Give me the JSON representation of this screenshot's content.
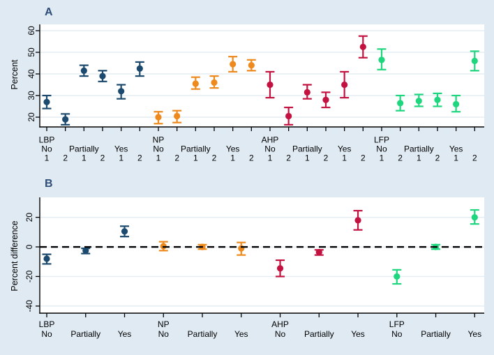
{
  "colors": {
    "background": "#dfeaf3",
    "plot_background": "#ffffff",
    "gridline": "#e3edf3",
    "axis": "#000000",
    "panel_letter": "#2e4d77",
    "zero_line": "#000000",
    "group_lbp": "#1b4a6e",
    "group_np": "#ee8a1d",
    "group_ahp": "#c41240",
    "group_lfp": "#1dd67d"
  },
  "chart_data": [
    {
      "type": "pointrange",
      "title": "A",
      "ylabel": "Percent",
      "yticks": [
        20,
        30,
        40,
        50,
        60
      ],
      "ylim": [
        15.5,
        62.9
      ],
      "grid": true,
      "legend": "none",
      "groups": [
        {
          "name": "LBP",
          "color": "#1b4a6e",
          "categories": [
            {
              "label": "No",
              "points": [
                {
                  "t": "1",
                  "value": 27,
                  "lo": 24,
                  "hi": 30
                },
                {
                  "t": "2",
                  "value": 19,
                  "lo": 16.5,
                  "hi": 21.5
                }
              ]
            },
            {
              "label": "Partially",
              "points": [
                {
                  "t": "1",
                  "value": 41.5,
                  "lo": 39,
                  "hi": 44
                },
                {
                  "t": "2",
                  "value": 39,
                  "lo": 36.5,
                  "hi": 41.5
                }
              ]
            },
            {
              "label": "Yes",
              "points": [
                {
                  "t": "1",
                  "value": 32,
                  "lo": 28.5,
                  "hi": 35
                },
                {
                  "t": "2",
                  "value": 42.5,
                  "lo": 39,
                  "hi": 45.5
                }
              ]
            }
          ]
        },
        {
          "name": "NP",
          "color": "#ee8a1d",
          "categories": [
            {
              "label": "No",
              "points": [
                {
                  "t": "1",
                  "value": 20,
                  "lo": 17,
                  "hi": 22.5
                },
                {
                  "t": "2",
                  "value": 20.5,
                  "lo": 17.5,
                  "hi": 23
                }
              ]
            },
            {
              "label": "Partially",
              "points": [
                {
                  "t": "1",
                  "value": 35.5,
                  "lo": 33,
                  "hi": 38.5
                },
                {
                  "t": "2",
                  "value": 36,
                  "lo": 33.5,
                  "hi": 39
                }
              ]
            },
            {
              "label": "Yes",
              "points": [
                {
                  "t": "1",
                  "value": 44.5,
                  "lo": 41,
                  "hi": 48
                },
                {
                  "t": "2",
                  "value": 44,
                  "lo": 41.5,
                  "hi": 46.5
                }
              ]
            }
          ]
        },
        {
          "name": "AHP",
          "color": "#c41240",
          "categories": [
            {
              "label": "No",
              "points": [
                {
                  "t": "1",
                  "value": 35,
                  "lo": 29,
                  "hi": 41
                },
                {
                  "t": "2",
                  "value": 20.5,
                  "lo": 16.5,
                  "hi": 24.5
                }
              ]
            },
            {
              "label": "Partially",
              "points": [
                {
                  "t": "1",
                  "value": 31.5,
                  "lo": 28.5,
                  "hi": 35
                },
                {
                  "t": "2",
                  "value": 28,
                  "lo": 24.5,
                  "hi": 31.5
                }
              ]
            },
            {
              "label": "Yes",
              "points": [
                {
                  "t": "1",
                  "value": 35,
                  "lo": 29,
                  "hi": 41
                },
                {
                  "t": "2",
                  "value": 52.5,
                  "lo": 47.5,
                  "hi": 57.5
                }
              ]
            }
          ]
        },
        {
          "name": "LFP",
          "color": "#1dd67d",
          "categories": [
            {
              "label": "No",
              "points": [
                {
                  "t": "1",
                  "value": 46.5,
                  "lo": 42,
                  "hi": 51.5
                },
                {
                  "t": "2",
                  "value": 26.5,
                  "lo": 23,
                  "hi": 30
                }
              ]
            },
            {
              "label": "Partially",
              "points": [
                {
                  "t": "1",
                  "value": 27.5,
                  "lo": 25,
                  "hi": 30.5
                },
                {
                  "t": "2",
                  "value": 28,
                  "lo": 25,
                  "hi": 31
                }
              ]
            },
            {
              "label": "Yes",
              "points": [
                {
                  "t": "1",
                  "value": 26,
                  "lo": 22.5,
                  "hi": 30
                },
                {
                  "t": "2",
                  "value": 46,
                  "lo": 41.5,
                  "hi": 50.5
                }
              ]
            }
          ]
        }
      ]
    },
    {
      "type": "pointrange",
      "title": "B",
      "ylabel": "Percent difference",
      "yticks": [
        -40,
        -20,
        0,
        20
      ],
      "ylim": [
        -44.9,
        33.5
      ],
      "grid": true,
      "zero_line": "dashed",
      "legend": "none",
      "groups": [
        {
          "name": "LBP",
          "color": "#1b4a6e",
          "categories": [
            {
              "label": "No",
              "points": [
                {
                  "value": -8,
                  "lo": -11.5,
                  "hi": -5
                }
              ]
            },
            {
              "label": "Partially",
              "points": [
                {
                  "value": -2.5,
                  "lo": -4.5,
                  "hi": -1
                }
              ]
            },
            {
              "label": "Yes",
              "points": [
                {
                  "value": 10.5,
                  "lo": 7,
                  "hi": 14
                }
              ]
            }
          ]
        },
        {
          "name": "NP",
          "color": "#ee8a1d",
          "categories": [
            {
              "label": "No",
              "points": [
                {
                  "value": 0.5,
                  "lo": -2.5,
                  "hi": 3.5
                }
              ]
            },
            {
              "label": "Partially",
              "points": [
                {
                  "value": 0,
                  "lo": -1.5,
                  "hi": 1.5
                }
              ]
            },
            {
              "label": "Yes",
              "points": [
                {
                  "value": -1,
                  "lo": -5.5,
                  "hi": 3
                }
              ]
            }
          ]
        },
        {
          "name": "AHP",
          "color": "#c41240",
          "categories": [
            {
              "label": "No",
              "points": [
                {
                  "value": -14.5,
                  "lo": -20,
                  "hi": -9
                }
              ]
            },
            {
              "label": "Partially",
              "points": [
                {
                  "value": -3.5,
                  "lo": -5.5,
                  "hi": -2
                }
              ]
            },
            {
              "label": "Yes",
              "points": [
                {
                  "value": 18,
                  "lo": 11.5,
                  "hi": 24.5
                }
              ]
            }
          ]
        },
        {
          "name": "LFP",
          "color": "#1dd67d",
          "categories": [
            {
              "label": "No",
              "points": [
                {
                  "value": -20,
                  "lo": -25,
                  "hi": -15.5
                }
              ]
            },
            {
              "label": "Partially",
              "points": [
                {
                  "value": 0,
                  "lo": -1.5,
                  "hi": 1.5
                }
              ]
            },
            {
              "label": "Yes",
              "points": [
                {
                  "value": 20,
                  "lo": 15.5,
                  "hi": 25
                }
              ]
            }
          ]
        }
      ]
    }
  ]
}
